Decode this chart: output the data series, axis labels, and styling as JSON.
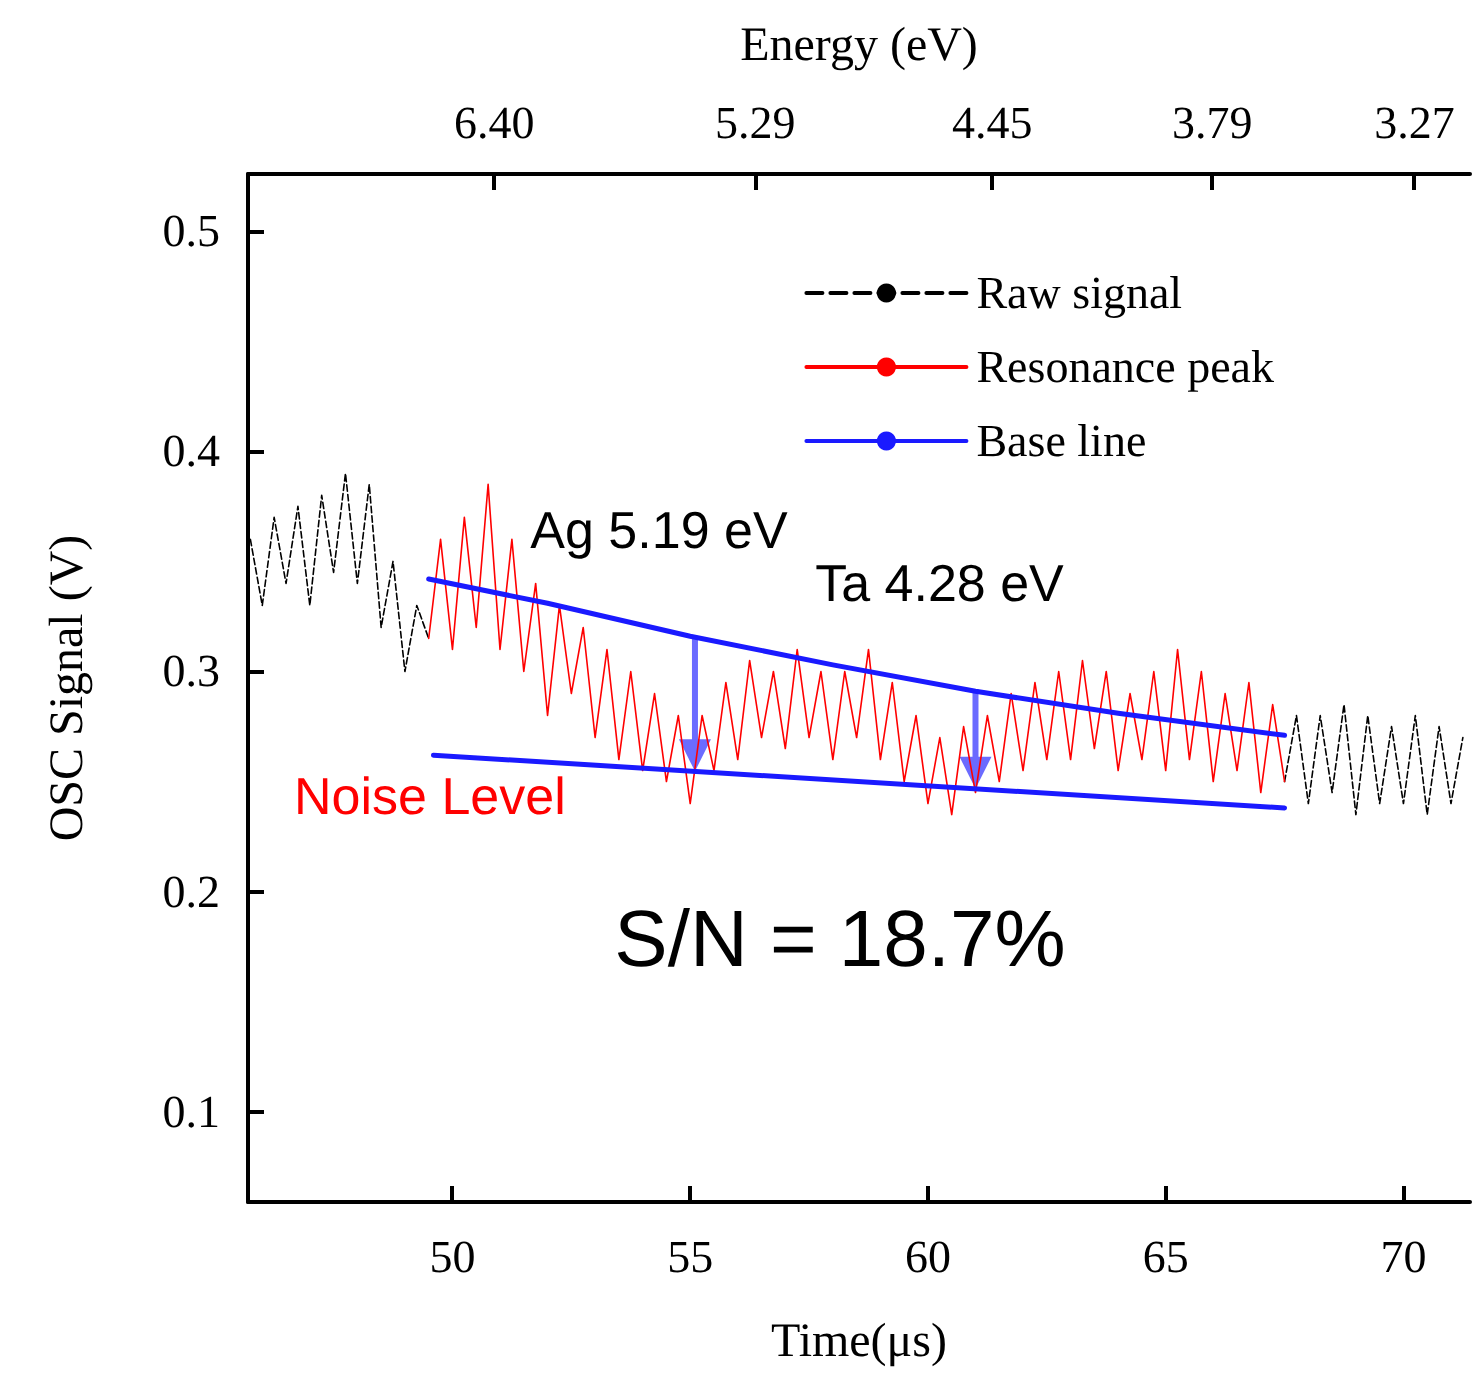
{
  "chart_data": {
    "type": "line",
    "xlabel": "Time(μs)",
    "ylabel": "OSC Signal (V)",
    "x2label": "Energy (eV)",
    "xlim": [
      45.7,
      71.4
    ],
    "xticks": [
      50,
      55,
      60,
      65,
      70
    ],
    "x2lim": [
      7.66,
      3.14
    ],
    "x2ticks": [
      {
        "value": 6.4,
        "label": "6.40"
      },
      5.29,
      4.45,
      3.79,
      3.27
    ],
    "log": "x2",
    "ylim": [
      0.059,
      0.526
    ],
    "yticks": [
      0.1,
      0.2,
      0.3,
      0.4,
      0.5
    ],
    "legend": "top right",
    "grid": false,
    "series": [
      {
        "name": "Raw signal",
        "color": "#000000",
        "line_style": "dashed",
        "x": [
          45.75,
          46,
          46.25,
          46.5,
          46.75,
          47,
          47.25,
          47.5,
          47.75,
          48,
          48.25,
          48.5,
          48.75,
          49,
          49.25,
          49.5,
          58,
          67.5,
          67.75,
          68,
          68.25,
          68.5,
          68.75,
          69,
          69.25,
          69.5,
          69.75,
          70,
          70.25,
          70.5,
          70.75,
          71,
          71.25
        ],
        "values": [
          0.36,
          0.33,
          0.37,
          0.34,
          0.375,
          0.33,
          0.38,
          0.345,
          0.39,
          0.34,
          0.385,
          0.32,
          0.35,
          0.3,
          0.33,
          0.315,
          null,
          0.25,
          0.28,
          0.24,
          0.28,
          0.245,
          0.285,
          0.235,
          0.28,
          0.24,
          0.275,
          0.24,
          0.28,
          0.235,
          0.275,
          0.24,
          0.27
        ]
      },
      {
        "name": "Resonance peak",
        "color": "#ff0000",
        "line_style": "solid",
        "x": [
          49.5,
          49.75,
          50,
          50.25,
          50.5,
          50.75,
          51,
          51.25,
          51.5,
          51.75,
          52,
          52.25,
          52.5,
          52.75,
          53,
          53.25,
          53.5,
          53.75,
          54,
          54.25,
          54.5,
          54.75,
          55,
          55.25,
          55.5,
          55.75,
          56,
          56.25,
          56.5,
          56.75,
          57,
          57.25,
          57.5,
          57.75,
          58,
          58.25,
          58.5,
          58.75,
          59,
          59.25,
          59.5,
          59.75,
          60,
          60.25,
          60.5,
          60.75,
          61,
          61.25,
          61.5,
          61.75,
          62,
          62.25,
          62.5,
          62.75,
          63,
          63.25,
          63.5,
          63.75,
          64,
          64.25,
          64.5,
          64.75,
          65,
          65.25,
          65.5,
          65.75,
          66,
          66.25,
          66.5,
          66.75,
          67,
          67.25,
          67.5
        ],
        "values": [
          0.315,
          0.36,
          0.31,
          0.37,
          0.32,
          0.385,
          0.31,
          0.36,
          0.3,
          0.34,
          0.28,
          0.33,
          0.29,
          0.32,
          0.27,
          0.31,
          0.26,
          0.3,
          0.255,
          0.29,
          0.25,
          0.28,
          0.24,
          0.28,
          0.255,
          0.295,
          0.26,
          0.305,
          0.27,
          0.3,
          0.265,
          0.31,
          0.27,
          0.3,
          0.26,
          0.3,
          0.27,
          0.31,
          0.26,
          0.295,
          0.25,
          0.28,
          0.24,
          0.27,
          0.235,
          0.275,
          0.245,
          0.28,
          0.25,
          0.29,
          0.255,
          0.295,
          0.26,
          0.3,
          0.26,
          0.305,
          0.265,
          0.3,
          0.255,
          0.29,
          0.26,
          0.3,
          0.255,
          0.31,
          0.26,
          0.3,
          0.25,
          0.29,
          0.255,
          0.295,
          0.245,
          0.285,
          0.25
        ]
      },
      {
        "name": "Base line",
        "color": "#1a1aff",
        "line_style": "solid",
        "x": [
          49.5,
          52,
          55,
          58,
          61,
          64,
          67.5,
          58,
          49.6,
          67.5
        ],
        "values": [
          0.342,
          0.331,
          0.316,
          0.303,
          0.291,
          0.281,
          0.271,
          null,
          0.262,
          0.238
        ]
      }
    ],
    "annotations": [
      {
        "text": "Ag 5.19 eV",
        "x": 55.1,
        "y": 0.316
      },
      {
        "text": "Ta 4.28 eV",
        "x": 61,
        "y": 0.292
      },
      "Noise Level",
      "S/N = 18.7%"
    ]
  }
}
